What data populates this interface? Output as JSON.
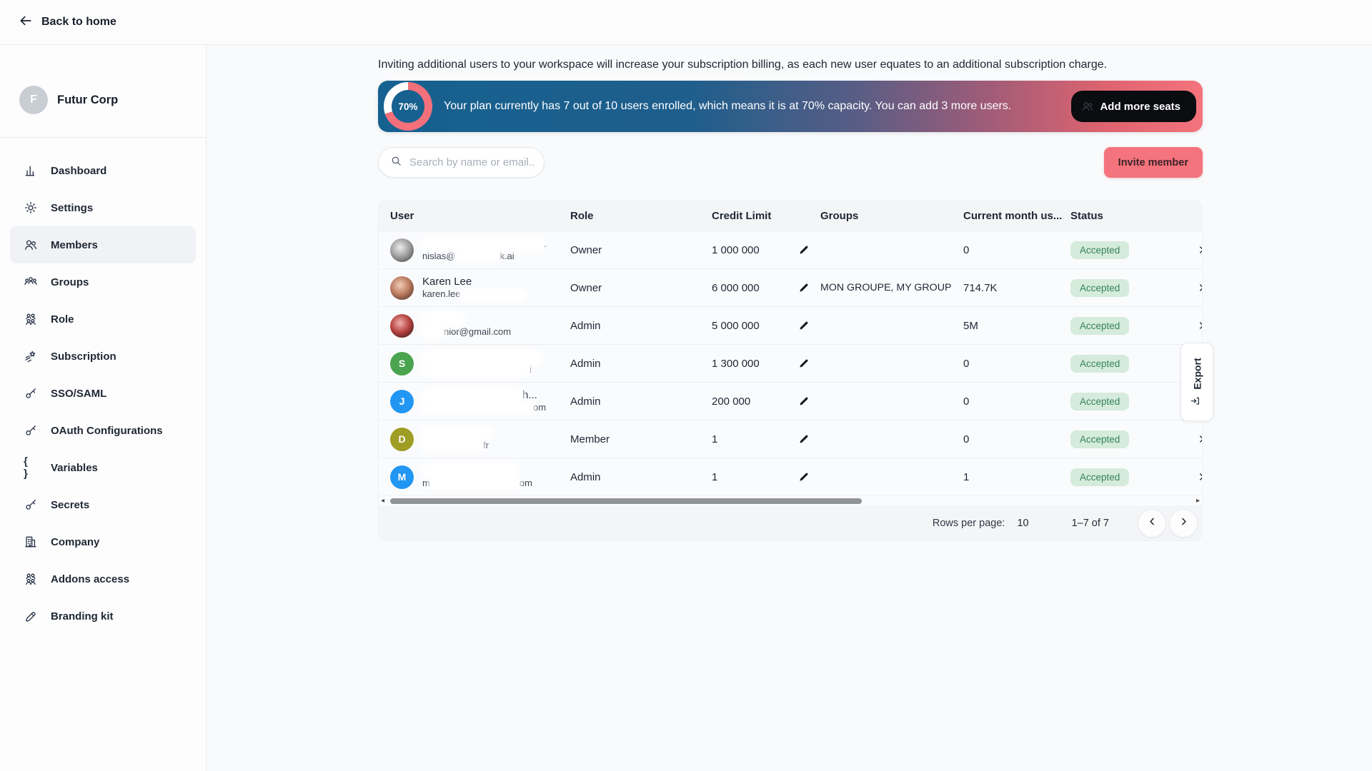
{
  "topbar": {
    "back_label": "Back to home"
  },
  "sidebar": {
    "workspace": {
      "initial": "F",
      "name": "Futur Corp"
    },
    "items": [
      {
        "label": "Dashboard",
        "icon": "bar-chart-icon",
        "active": false
      },
      {
        "label": "Settings",
        "icon": "gear-icon",
        "active": false
      },
      {
        "label": "Members",
        "icon": "members-icon",
        "active": true
      },
      {
        "label": "Groups",
        "icon": "groups-icon",
        "active": false
      },
      {
        "label": "Role",
        "icon": "people-icon",
        "active": false
      },
      {
        "label": "Subscription",
        "icon": "shooting-star-icon",
        "active": false
      },
      {
        "label": "SSO/SAML",
        "icon": "key-icon",
        "active": false
      },
      {
        "label": "OAuth Configurations",
        "icon": "key-icon",
        "active": false
      },
      {
        "label": "Variables",
        "icon": "braces-icon",
        "active": false
      },
      {
        "label": "Secrets",
        "icon": "key-icon",
        "active": false
      },
      {
        "label": "Company",
        "icon": "building-icon",
        "active": false
      },
      {
        "label": "Addons access",
        "icon": "people-icon",
        "active": false
      },
      {
        "label": "Branding kit",
        "icon": "branding-icon",
        "active": false
      }
    ]
  },
  "main": {
    "intro": "Inviting additional users to your workspace will increase your subscription billing, as each new user equates to an additional subscription charge.",
    "banner": {
      "percent": 70,
      "percent_label": "70%",
      "message": "Your plan currently has 7 out of 10 users enrolled, which means it is at 70% capacity. You can add 3 more users.",
      "cta": "Add more seats",
      "gradient_start": "#15618f",
      "gradient_end": "#f4737c",
      "donut_color": "#f4707b"
    },
    "search_placeholder": "Search by name or email...",
    "invite_button": "Invite member",
    "table": {
      "columns": [
        "User",
        "Role",
        "Credit Limit",
        "Groups",
        "Current month us...",
        "Status"
      ],
      "rows": [
        {
          "name_pre": "",
          "name_post": ".",
          "email_pre": "nislas@",
          "email_post": "k.ai",
          "avatar": {
            "kind": "photo",
            "colors": [
              "#ededed",
              "#9e9e9e",
              "#3a3a3a"
            ]
          },
          "role": "Owner",
          "credit_limit": "1 000 000",
          "groups": "",
          "usage": "0",
          "status": "Accepted"
        },
        {
          "name_pre": "Karen Lee",
          "name_post": "",
          "email_pre": "karen.lee",
          "email_post": "",
          "avatar": {
            "kind": "photo",
            "colors": [
              "#f2cdb8",
              "#b97a5e",
              "#35221c"
            ]
          },
          "role": "Owner",
          "credit_limit": "6 000 000",
          "groups": "MON GROUPE, MY GROUP",
          "usage": "714.7K",
          "status": "Accepted"
        },
        {
          "name_pre": "",
          "name_post": "",
          "email_pre": "",
          "email_post": "nior@gmail.com",
          "avatar": {
            "kind": "photo",
            "colors": [
              "#f0b1ac",
              "#b5413f",
              "#1c1416"
            ]
          },
          "role": "Admin",
          "credit_limit": "5 000 000",
          "groups": "",
          "usage": "5M",
          "status": "Accepted"
        },
        {
          "name_pre": "",
          "name_post": "",
          "email_pre": "",
          "email_post": "i",
          "avatar": {
            "kind": "initial",
            "letter": "S",
            "color": "#4aa34e"
          },
          "role": "Admin",
          "credit_limit": "1 300 000",
          "groups": "",
          "usage": "0",
          "status": "Accepted"
        },
        {
          "name_pre": "",
          "name_post": "h...",
          "email_pre": "",
          "email_post": "om",
          "avatar": {
            "kind": "initial",
            "letter": "J",
            "color": "#2196f3"
          },
          "role": "Admin",
          "credit_limit": "200 000",
          "groups": "",
          "usage": "0",
          "status": "Accepted"
        },
        {
          "name_pre": "",
          "name_post": "",
          "email_pre": "",
          "email_post": "fr",
          "avatar": {
            "kind": "initial",
            "letter": "D",
            "color": "#9e9d24"
          },
          "role": "Member",
          "credit_limit": "1",
          "groups": "",
          "usage": "0",
          "status": "Accepted"
        },
        {
          "name_pre": "",
          "name_post": "",
          "email_pre": "m",
          "email_post": "om",
          "avatar": {
            "kind": "initial",
            "letter": "M",
            "color": "#2196f3"
          },
          "role": "Admin",
          "credit_limit": "1",
          "groups": "",
          "usage": "1",
          "status": "Accepted"
        }
      ]
    },
    "footer": {
      "rows_per_page_label": "Rows per page:",
      "rows_per_page": "10",
      "range": "1–7 of 7"
    },
    "export_label": "Export"
  }
}
